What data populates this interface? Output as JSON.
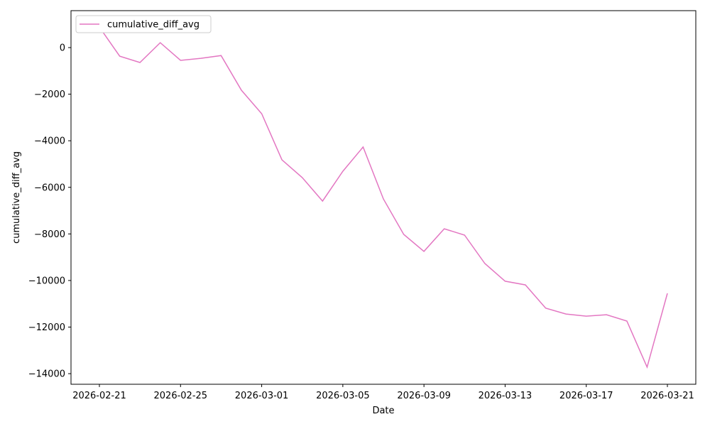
{
  "chart_data": {
    "type": "line",
    "x_label": "Date",
    "y_label": "cumulative_diff_avg",
    "x": [
      "2026-02-21",
      "2026-02-22",
      "2026-02-23",
      "2026-02-24",
      "2026-02-25",
      "2026-02-26",
      "2026-02-27",
      "2026-02-28",
      "2026-03-01",
      "2026-03-02",
      "2026-03-03",
      "2026-03-04",
      "2026-03-05",
      "2026-03-06",
      "2026-03-07",
      "2026-03-08",
      "2026-03-09",
      "2026-03-10",
      "2026-03-11",
      "2026-03-12",
      "2026-03-13",
      "2026-03-14",
      "2026-03-15",
      "2026-03-16",
      "2026-03-17",
      "2026-03-18",
      "2026-03-19",
      "2026-03-20",
      "2026-03-21"
    ],
    "series": [
      {
        "name": "cumulative_diff_avg",
        "color": "#e377c2",
        "values": [
          880,
          -370,
          -640,
          210,
          -550,
          -460,
          -340,
          -1830,
          -2840,
          -4820,
          -5580,
          -6590,
          -5310,
          -4270,
          -6500,
          -8020,
          -8750,
          -7780,
          -8050,
          -9270,
          -10030,
          -10190,
          -11190,
          -11440,
          -11530,
          -11470,
          -11740,
          -13720,
          -10550
        ]
      }
    ],
    "ylim": [
      -14455,
      1586
    ],
    "yticks": [
      0,
      {
        "value": -2000,
        "label": "−2000"
      },
      {
        "value": -4000,
        "label": "−4000"
      },
      {
        "value": -6000,
        "label": "−6000"
      },
      {
        "value": -8000,
        "label": "−8000"
      },
      {
        "value": -10000,
        "label": "−10000"
      },
      {
        "value": -12000,
        "label": "−12000"
      },
      {
        "value": -14000,
        "label": "−14000"
      }
    ],
    "xticks": [
      "2026-02-21",
      "2026-02-25",
      "2026-03-01",
      "2026-03-05",
      "2026-03-09",
      "2026-03-13",
      "2026-03-17",
      "2026-03-21"
    ],
    "legend": "upper left",
    "grid": false
  }
}
